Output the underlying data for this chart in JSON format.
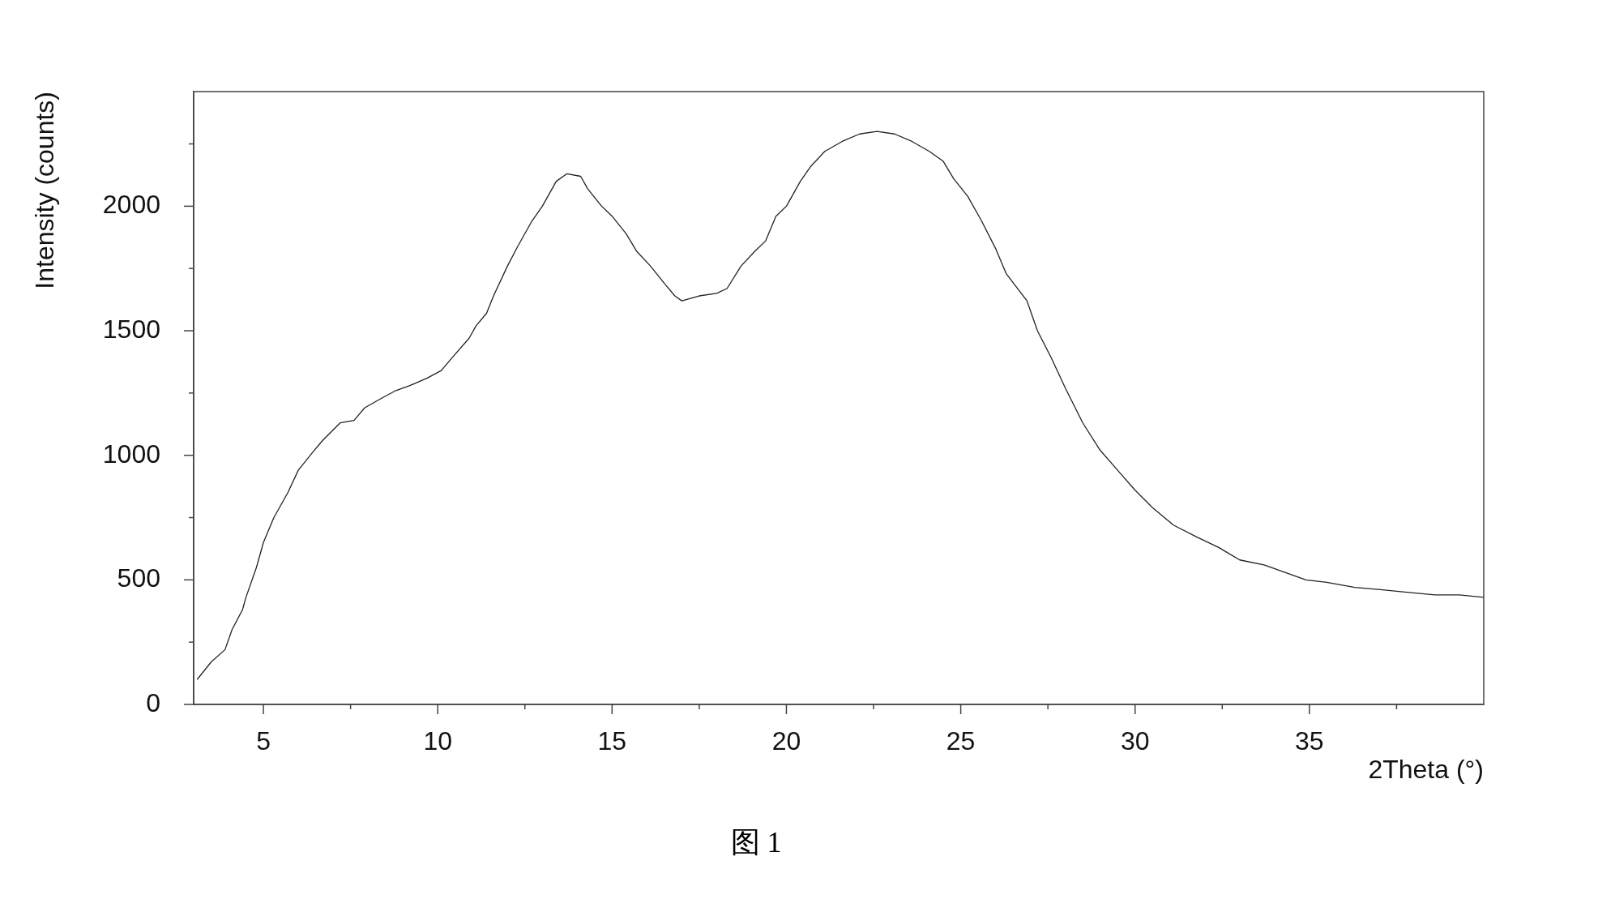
{
  "chart_data": {
    "type": "line",
    "xlabel": "2Theta (°)",
    "ylabel": "Intensity (counts)",
    "annotations": [
      "图 1"
    ],
    "x": [
      3.1,
      3.5,
      3.9,
      4.1,
      4.4,
      4.5,
      4.8,
      5,
      5.3,
      5.7,
      6,
      6.4,
      6.7,
      7.2,
      7.6,
      7.9,
      8.4,
      8.8,
      9.2,
      9.7,
      10.1,
      10.4,
      10.9,
      11.1,
      11.4,
      11.6,
      12,
      12.3,
      12.7,
      13,
      13.4,
      13.7,
      14.1,
      14.3,
      14.7,
      15,
      15.4,
      15.7,
      16.1,
      16.5,
      16.8,
      17,
      17.5,
      18,
      18.3,
      18.7,
      19.1,
      19.4,
      19.7,
      20,
      20.4,
      20.7,
      21.1,
      21.6,
      22.1,
      22.6,
      23.1,
      23.6,
      24.1,
      24.5,
      24.8,
      25.2,
      25.6,
      26,
      26.3,
      26.9,
      27.2,
      27.6,
      28,
      28.5,
      29,
      29.5,
      30,
      30.5,
      31.1,
      31.8,
      32.4,
      33,
      33.7,
      34.3,
      34.9,
      35.5,
      36.3,
      37.1,
      37.8,
      38.6,
      39.3,
      40
    ],
    "series": [
      {
        "color": "#222222",
        "values": [
          100,
          170,
          220,
          300,
          380,
          430,
          550,
          650,
          750,
          850,
          940,
          1010,
          1060,
          1130,
          1140,
          1190,
          1230,
          1260,
          1280,
          1310,
          1340,
          1390,
          1470,
          1520,
          1570,
          1640,
          1760,
          1840,
          1940,
          2000,
          2100,
          2130,
          2120,
          2070,
          2000,
          1960,
          1890,
          1820,
          1760,
          1690,
          1640,
          1620,
          1640,
          1650,
          1670,
          1760,
          1820,
          1860,
          1960,
          2000,
          2100,
          2160,
          2220,
          2260,
          2290,
          2300,
          2290,
          2260,
          2220,
          2180,
          2110,
          2040,
          1940,
          1830,
          1730,
          1620,
          1500,
          1390,
          1270,
          1130,
          1020,
          940,
          860,
          790,
          720,
          670,
          630,
          580,
          560,
          530,
          500,
          490,
          470,
          460,
          450,
          440,
          440,
          430
        ]
      }
    ],
    "xlim": [
      3,
      40
    ],
    "ylim": [
      0,
      2460
    ],
    "xticks": [
      5,
      {
        "value": 7.5,
        "label": null
      },
      10,
      {
        "value": 12.5,
        "label": null
      },
      15,
      {
        "value": 17.5,
        "label": null
      },
      20,
      {
        "value": 22.5,
        "label": null
      },
      25,
      {
        "value": 27.5,
        "label": null
      },
      30,
      {
        "value": 32.5,
        "label": null
      },
      35,
      {
        "value": 37.5,
        "label": null
      }
    ],
    "yticks": [
      0,
      {
        "value": 250,
        "label": null
      },
      500,
      {
        "value": 750,
        "label": null
      },
      1000,
      {
        "value": 1250,
        "label": null
      },
      1500,
      {
        "value": 1750,
        "label": null
      },
      2000,
      {
        "value": 2250,
        "label": null
      }
    ]
  }
}
